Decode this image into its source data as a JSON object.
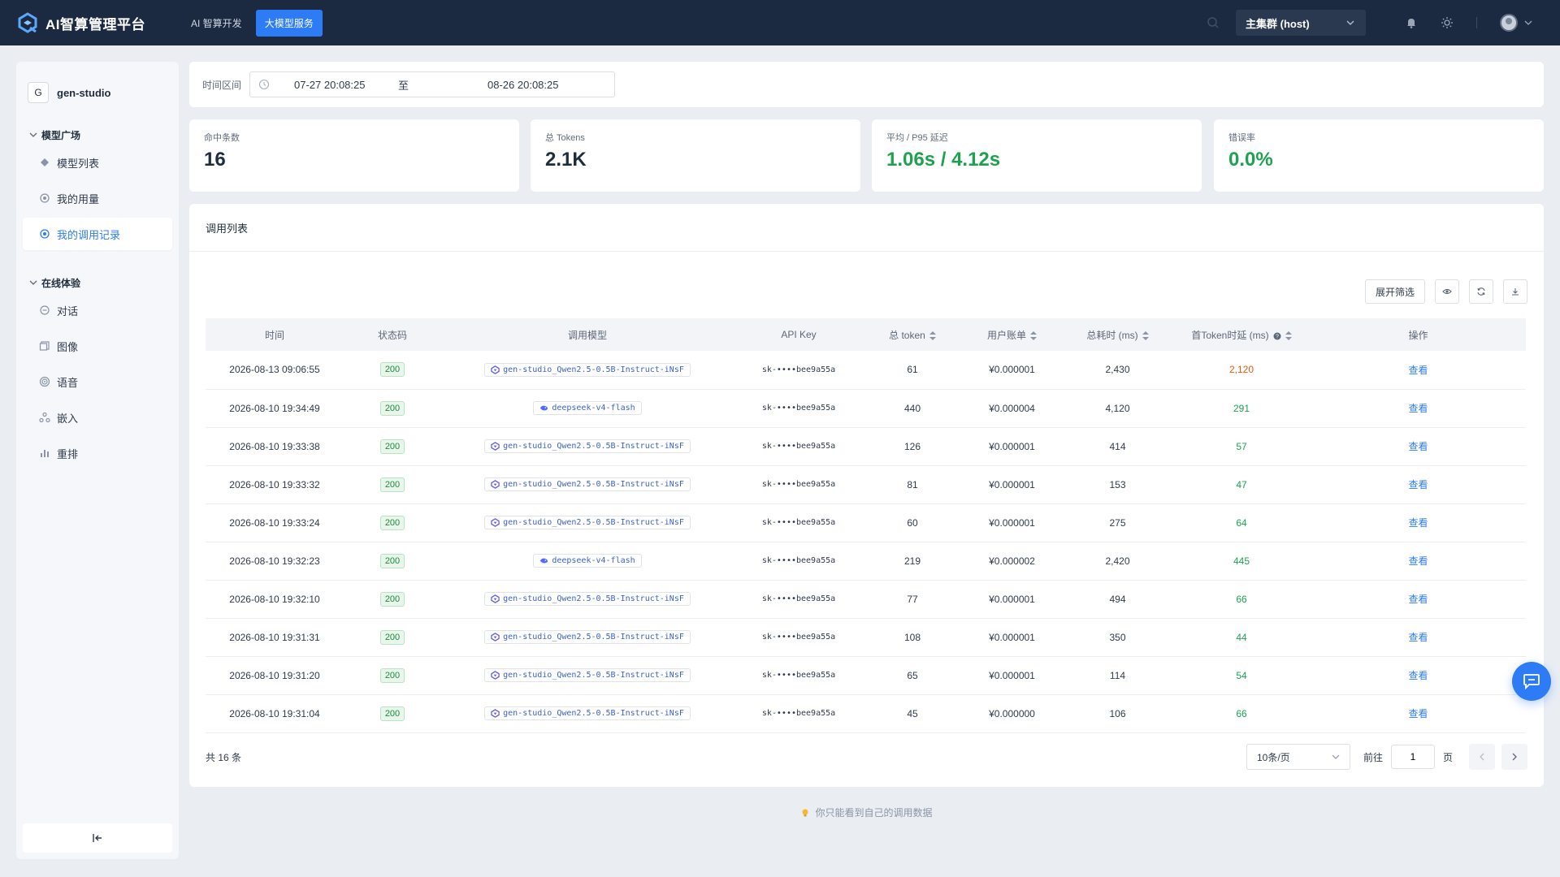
{
  "header": {
    "title": "AI智算管理平台",
    "nav": [
      "AI 智算开发",
      "大模型服务"
    ],
    "active_nav": 1,
    "cluster": "主集群 (host)"
  },
  "sidebar": {
    "workspace_initial": "G",
    "workspace_name": "gen-studio",
    "groups": [
      {
        "label": "模型广场",
        "items": [
          {
            "label": "模型列表",
            "icon": "cube-icon"
          },
          {
            "label": "我的用量",
            "icon": "usage-icon"
          },
          {
            "label": "我的调用记录",
            "icon": "record-icon",
            "active": true
          }
        ]
      },
      {
        "label": "在线体验",
        "items": [
          {
            "label": "对话",
            "icon": "chat-icon"
          },
          {
            "label": "图像",
            "icon": "image-icon"
          },
          {
            "label": "语音",
            "icon": "audio-icon"
          },
          {
            "label": "嵌入",
            "icon": "embed-icon"
          },
          {
            "label": "重排",
            "icon": "rerank-icon"
          }
        ]
      }
    ]
  },
  "filter": {
    "label": "时间区间",
    "start": "07-27 20:08:25",
    "separator": "至",
    "end": "08-26 20:08:25"
  },
  "stats": [
    {
      "label": "命中条数",
      "value": "16"
    },
    {
      "label": "总 Tokens",
      "value": "2.1K"
    },
    {
      "label": "平均 / P95 延迟",
      "value": "1.06s / 4.12s"
    },
    {
      "label": "错误率",
      "value": "0.0%"
    }
  ],
  "list": {
    "title": "调用列表",
    "toolbar": {
      "expand_filter": "展开筛选"
    },
    "columns": [
      "时间",
      "状态码",
      "调用模型",
      "API Key",
      "总 token",
      "用户账单",
      "总耗时 (ms)",
      "首Token时延 (ms)",
      "操作"
    ],
    "action_label": "查看",
    "rows": [
      {
        "time": "2026-08-13 09:06:55",
        "status": "200",
        "model": "gen-studio_Qwen2.5-0.5B-Instruct-iNsF",
        "api_key": "sk-••••bee9a55a",
        "tokens": "61",
        "bill": "¥0.000001",
        "total_ms": "2,430",
        "ttft": "2,120"
      },
      {
        "time": "2026-08-10 19:34:49",
        "status": "200",
        "model": "deepseek-v4-flash",
        "api_key": "sk-••••bee9a55a",
        "tokens": "440",
        "bill": "¥0.000004",
        "total_ms": "4,120",
        "ttft": "291"
      },
      {
        "time": "2026-08-10 19:33:38",
        "status": "200",
        "model": "gen-studio_Qwen2.5-0.5B-Instruct-iNsF",
        "api_key": "sk-••••bee9a55a",
        "tokens": "126",
        "bill": "¥0.000001",
        "total_ms": "414",
        "ttft": "57"
      },
      {
        "time": "2026-08-10 19:33:32",
        "status": "200",
        "model": "gen-studio_Qwen2.5-0.5B-Instruct-iNsF",
        "api_key": "sk-••••bee9a55a",
        "tokens": "81",
        "bill": "¥0.000001",
        "total_ms": "153",
        "ttft": "47"
      },
      {
        "time": "2026-08-10 19:33:24",
        "status": "200",
        "model": "gen-studio_Qwen2.5-0.5B-Instruct-iNsF",
        "api_key": "sk-••••bee9a55a",
        "tokens": "60",
        "bill": "¥0.000001",
        "total_ms": "275",
        "ttft": "64"
      },
      {
        "time": "2026-08-10 19:32:23",
        "status": "200",
        "model": "deepseek-v4-flash",
        "api_key": "sk-••••bee9a55a",
        "tokens": "219",
        "bill": "¥0.000002",
        "total_ms": "2,420",
        "ttft": "445"
      },
      {
        "time": "2026-08-10 19:32:10",
        "status": "200",
        "model": "gen-studio_Qwen2.5-0.5B-Instruct-iNsF",
        "api_key": "sk-••••bee9a55a",
        "tokens": "77",
        "bill": "¥0.000001",
        "total_ms": "494",
        "ttft": "66"
      },
      {
        "time": "2026-08-10 19:31:31",
        "status": "200",
        "model": "gen-studio_Qwen2.5-0.5B-Instruct-iNsF",
        "api_key": "sk-••••bee9a55a",
        "tokens": "108",
        "bill": "¥0.000001",
        "total_ms": "350",
        "ttft": "44"
      },
      {
        "time": "2026-08-10 19:31:20",
        "status": "200",
        "model": "gen-studio_Qwen2.5-0.5B-Instruct-iNsF",
        "api_key": "sk-••••bee9a55a",
        "tokens": "65",
        "bill": "¥0.000001",
        "total_ms": "114",
        "ttft": "54"
      },
      {
        "time": "2026-08-10 19:31:04",
        "status": "200",
        "model": "gen-studio_Qwen2.5-0.5B-Instruct-iNsF",
        "api_key": "sk-••••bee9a55a",
        "tokens": "45",
        "bill": "¥0.000000",
        "total_ms": "106",
        "ttft": "66"
      }
    ],
    "total": "共 16 条",
    "pagination": {
      "page_size": "10条/页",
      "goto_label": "前往",
      "page": "1",
      "page_suffix": "页"
    }
  },
  "hint": "你只能看到自己的调用数据",
  "colors": {
    "accent": "#2d7cf6",
    "topbar": "#1b2a41",
    "success": "#1ea24f",
    "warning": "#e8590c"
  }
}
